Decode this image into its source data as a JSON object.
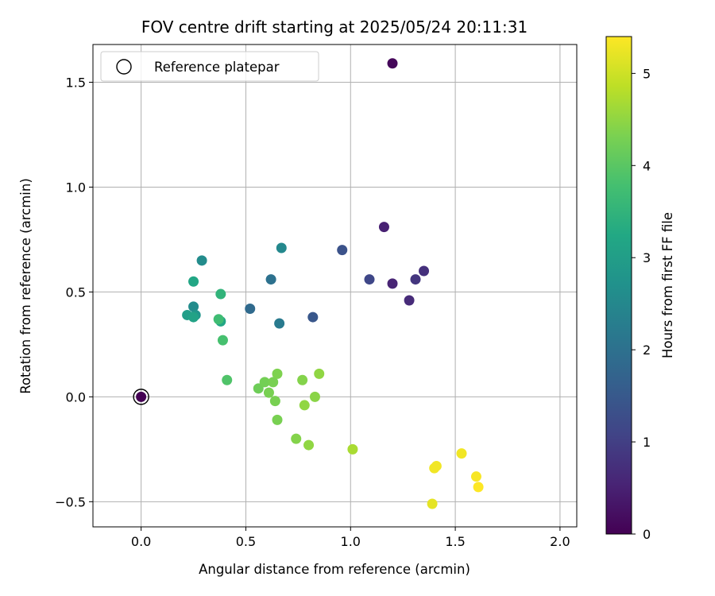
{
  "chart_data": {
    "type": "scatter",
    "title": "FOV centre drift starting at 2025/05/24 20:11:31",
    "xlabel": "Angular distance from reference (arcmin)",
    "ylabel": "Rotation from reference (arcmin)",
    "xlim": [
      -0.23,
      2.08
    ],
    "ylim": [
      -0.62,
      1.68
    ],
    "xticks": [
      0.0,
      0.5,
      1.0,
      1.5,
      2.0
    ],
    "xtick_labels": [
      "0.0",
      "0.5",
      "1.0",
      "1.5",
      "2.0"
    ],
    "yticks": [
      -0.5,
      0.0,
      0.5,
      1.0,
      1.5
    ],
    "ytick_labels": [
      "−0.5",
      "0.0",
      "0.5",
      "1.0",
      "1.5"
    ],
    "grid": true,
    "legend": {
      "position": "top-left",
      "entries": [
        "Reference platepar"
      ]
    },
    "reference_point": {
      "x": 0.0,
      "y": 0.0,
      "hours": 0.0
    },
    "colorbar": {
      "label": "Hours from first FF file",
      "range": [
        0,
        5.4
      ],
      "ticks": [
        0,
        1,
        2,
        3,
        4,
        5
      ],
      "tick_labels": [
        "0",
        "1",
        "2",
        "3",
        "4",
        "5"
      ],
      "colormap": "viridis"
    },
    "points": [
      {
        "x": 0.0,
        "y": 0.0,
        "hours": 0.0
      },
      {
        "x": 1.2,
        "y": 1.59,
        "hours": 0.1
      },
      {
        "x": 1.16,
        "y": 0.81,
        "hours": 0.5
      },
      {
        "x": 1.2,
        "y": 0.54,
        "hours": 0.55
      },
      {
        "x": 1.28,
        "y": 0.46,
        "hours": 0.65
      },
      {
        "x": 1.35,
        "y": 0.6,
        "hours": 0.75
      },
      {
        "x": 1.31,
        "y": 0.56,
        "hours": 0.85
      },
      {
        "x": 1.09,
        "y": 0.56,
        "hours": 1.15
      },
      {
        "x": 0.96,
        "y": 0.7,
        "hours": 1.35
      },
      {
        "x": 0.82,
        "y": 0.38,
        "hours": 1.45
      },
      {
        "x": 0.52,
        "y": 0.42,
        "hours": 1.85
      },
      {
        "x": 0.62,
        "y": 0.56,
        "hours": 2.0
      },
      {
        "x": 0.66,
        "y": 0.35,
        "hours": 2.2
      },
      {
        "x": 0.67,
        "y": 0.71,
        "hours": 2.5
      },
      {
        "x": 0.29,
        "y": 0.65,
        "hours": 2.6
      },
      {
        "x": 0.25,
        "y": 0.43,
        "hours": 2.6
      },
      {
        "x": 0.26,
        "y": 0.39,
        "hours": 2.8
      },
      {
        "x": 0.22,
        "y": 0.39,
        "hours": 3.0
      },
      {
        "x": 0.25,
        "y": 0.38,
        "hours": 3.1
      },
      {
        "x": 0.25,
        "y": 0.55,
        "hours": 3.2
      },
      {
        "x": 0.38,
        "y": 0.36,
        "hours": 3.2
      },
      {
        "x": 0.38,
        "y": 0.49,
        "hours": 3.5
      },
      {
        "x": 0.37,
        "y": 0.37,
        "hours": 3.7
      },
      {
        "x": 0.39,
        "y": 0.27,
        "hours": 3.8
      },
      {
        "x": 0.41,
        "y": 0.08,
        "hours": 3.9
      },
      {
        "x": 0.56,
        "y": 0.04,
        "hours": 4.2
      },
      {
        "x": 0.59,
        "y": 0.07,
        "hours": 4.25
      },
      {
        "x": 0.61,
        "y": 0.02,
        "hours": 4.3
      },
      {
        "x": 0.63,
        "y": 0.07,
        "hours": 4.3
      },
      {
        "x": 0.65,
        "y": 0.11,
        "hours": 4.35
      },
      {
        "x": 0.64,
        "y": -0.02,
        "hours": 4.3
      },
      {
        "x": 0.65,
        "y": -0.11,
        "hours": 4.3
      },
      {
        "x": 0.74,
        "y": -0.2,
        "hours": 4.4
      },
      {
        "x": 0.77,
        "y": 0.08,
        "hours": 4.4
      },
      {
        "x": 0.78,
        "y": -0.04,
        "hours": 4.5
      },
      {
        "x": 0.8,
        "y": -0.23,
        "hours": 4.5
      },
      {
        "x": 0.83,
        "y": 0.0,
        "hours": 4.45
      },
      {
        "x": 0.85,
        "y": 0.11,
        "hours": 4.5
      },
      {
        "x": 1.01,
        "y": -0.25,
        "hours": 4.7
      },
      {
        "x": 1.39,
        "y": -0.51,
        "hours": 5.2
      },
      {
        "x": 1.4,
        "y": -0.34,
        "hours": 5.3
      },
      {
        "x": 1.41,
        "y": -0.33,
        "hours": 5.3
      },
      {
        "x": 1.53,
        "y": -0.27,
        "hours": 5.3
      },
      {
        "x": 1.6,
        "y": -0.38,
        "hours": 5.35
      },
      {
        "x": 1.61,
        "y": -0.43,
        "hours": 5.4
      }
    ]
  }
}
